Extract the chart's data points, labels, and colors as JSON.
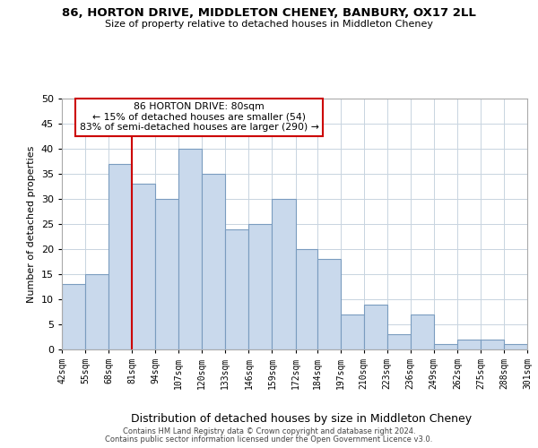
{
  "title": "86, HORTON DRIVE, MIDDLETON CHENEY, BANBURY, OX17 2LL",
  "subtitle": "Size of property relative to detached houses in Middleton Cheney",
  "xlabel": "Distribution of detached houses by size in Middleton Cheney",
  "ylabel": "Number of detached properties",
  "bin_edges": [
    42,
    55,
    68,
    81,
    94,
    107,
    120,
    133,
    146,
    159,
    172,
    184,
    197,
    210,
    223,
    236,
    249,
    262,
    275,
    288,
    301
  ],
  "bin_labels": [
    "42sqm",
    "55sqm",
    "68sqm",
    "81sqm",
    "94sqm",
    "107sqm",
    "120sqm",
    "133sqm",
    "146sqm",
    "159sqm",
    "172sqm",
    "184sqm",
    "197sqm",
    "210sqm",
    "223sqm",
    "236sqm",
    "249sqm",
    "262sqm",
    "275sqm",
    "288sqm",
    "301sqm"
  ],
  "counts": [
    13,
    15,
    37,
    33,
    30,
    40,
    35,
    24,
    25,
    30,
    20,
    18,
    7,
    9,
    3,
    7,
    1,
    2,
    2,
    1
  ],
  "bar_color": "#c9d9ec",
  "bar_edge_color": "#7a9cbf",
  "grid_color": "#c8d4e0",
  "vline_x": 81,
  "vline_color": "#cc0000",
  "ylim": [
    0,
    50
  ],
  "yticks": [
    0,
    5,
    10,
    15,
    20,
    25,
    30,
    35,
    40,
    45,
    50
  ],
  "annotation_title": "86 HORTON DRIVE: 80sqm",
  "annotation_line1": "← 15% of detached houses are smaller (54)",
  "annotation_line2": "83% of semi-detached houses are larger (290) →",
  "annotation_box_color": "#ffffff",
  "annotation_box_edge": "#cc0000",
  "footer1": "Contains HM Land Registry data © Crown copyright and database right 2024.",
  "footer2": "Contains public sector information licensed under the Open Government Licence v3.0."
}
